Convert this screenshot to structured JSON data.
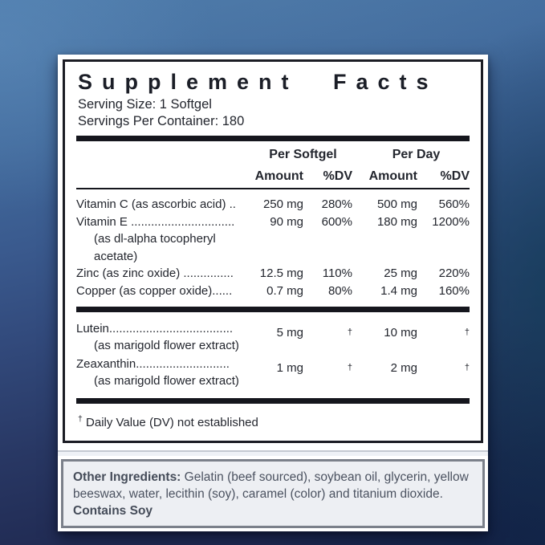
{
  "panel": {
    "title": "Supplement Facts",
    "serving_size": "Serving Size: 1 Softgel",
    "servings_per_container": "Servings Per Container: 180",
    "columns": {
      "group_1": "Per Softgel",
      "group_2": "Per Day",
      "amount": "Amount",
      "dv": "%DV"
    },
    "rows1": [
      {
        "name": "Vitamin C (as ascorbic acid) ..",
        "amt1": "250 mg",
        "dv1": "280%",
        "amt2": "500 mg",
        "dv2": "560%"
      },
      {
        "name": "Vitamin E ...............................",
        "amt1": "90 mg",
        "dv1": "600%",
        "amt2": "180 mg",
        "dv2": "1200%"
      },
      {
        "name": "(as dl-alpha tocopheryl"
      },
      {
        "name": "acetate)"
      },
      {
        "name": "Zinc (as zinc oxide) ...............",
        "amt1": "12.5 mg",
        "dv1": "110%",
        "amt2": "25 mg",
        "dv2": "220%"
      },
      {
        "name": "Copper (as copper oxide)......",
        "amt1": "0.7 mg",
        "dv1": "80%",
        "amt2": "1.4 mg",
        "dv2": "160%"
      }
    ],
    "rows2": [
      {
        "name": "Lutein.....................................",
        "sub": "(as marigold flower extract)",
        "amt1": "5 mg",
        "dv1": "†",
        "amt2": "10 mg",
        "dv2": "†"
      },
      {
        "name": "Zeaxanthin............................",
        "sub": "(as marigold flower extract)",
        "amt1": "1 mg",
        "dv1": "†",
        "amt2": "2 mg",
        "dv2": "†"
      }
    ],
    "footnote": {
      "symbol": "†",
      "text": "Daily Value (DV) not established"
    }
  },
  "other_box": {
    "label": "Other Ingredients:",
    "text": "Gelatin (beef sourced), soybean oil, glycerin, yellow beeswax, water, lecithin (soy), caramel (color) and titanium dioxide.",
    "contains": "Contains Soy"
  },
  "colors": {
    "label_text": "#1b1e27",
    "rule_black": "#15161d",
    "other_text": "#4b5260",
    "other_bg": "#edeff3",
    "other_border": "#7b808a",
    "background_top": "#4b7aab",
    "background_bottom": "#1d2750"
  }
}
